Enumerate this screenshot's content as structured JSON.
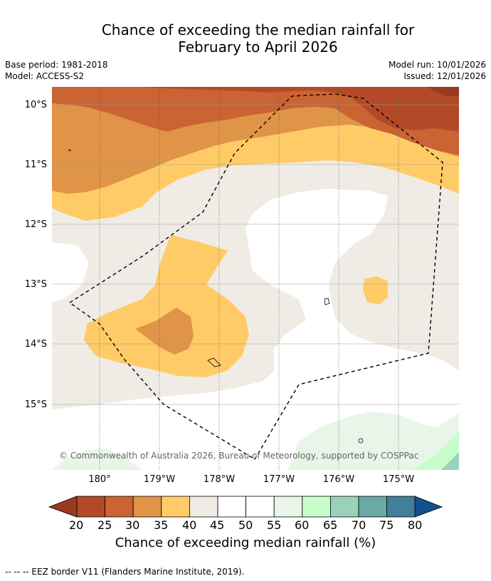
{
  "title": {
    "line1": "Chance of exceeding the median rainfall for",
    "line2": "February to April 2026"
  },
  "meta": {
    "base_period": "Base period: 1981-2018",
    "model": "Model: ACCESS-S2",
    "model_run": "Model run: 10/01/2026",
    "issued": "Issued: 12/01/2026"
  },
  "map": {
    "lat_labels": [
      "10°S",
      "11°S",
      "12°S",
      "13°S",
      "14°S",
      "15°S"
    ],
    "lon_labels": [
      "180°",
      "179°W",
      "178°W",
      "177°W",
      "176°W",
      "175°W"
    ],
    "copyright": "© Commonwealth of Australia 2026, Bureau of Meteorology, supported by COSPPac",
    "colors": {
      "c20_25": "#b24a28",
      "c25_30": "#ca6433",
      "c30_35": "#e09447",
      "c35_40": "#fecb67",
      "c40_45": "#f0ece5",
      "c45_55": "#ffffff",
      "c55_60": "#e8f5e8",
      "c60_65": "#c8fdcb",
      "c65_70": "#9ad1bb",
      "c70_75": "#6ba9a6",
      "c75_80": "#427f9a",
      "over": "#15508e",
      "under": "#9a3b20"
    }
  },
  "colorbar": {
    "ticks": [
      "20",
      "25",
      "30",
      "35",
      "40",
      "45",
      "50",
      "55",
      "60",
      "65",
      "70",
      "75",
      "80"
    ],
    "label": "Chance of exceeding median rainfall (%)"
  },
  "footnote": "--  --  -- EEZ border V11 (Flanders Marine Institute, 2019)."
}
